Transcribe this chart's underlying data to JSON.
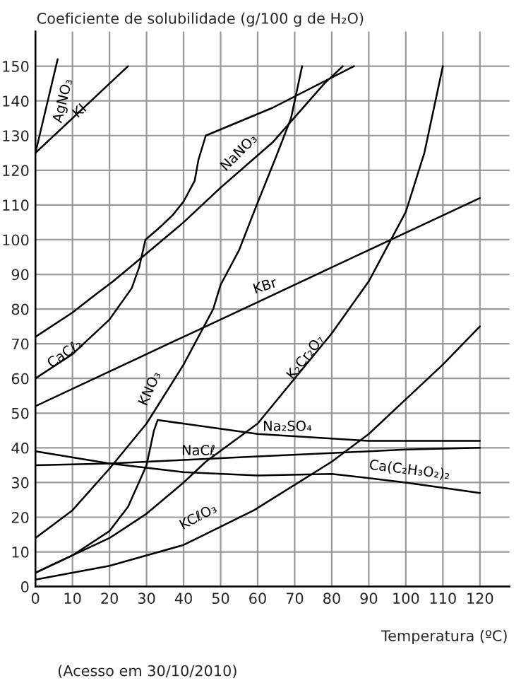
{
  "chart_data": {
    "type": "line",
    "ylabel": "Coeficiente de solubilidade (g/100 g de H₂O)",
    "xlabel": "Temperatura (ºC)",
    "annotations": [
      "(Acesso em 30/10/2010)"
    ],
    "xlim": [
      0,
      128
    ],
    "ylim": [
      0,
      160
    ],
    "xticks": [
      0,
      10,
      20,
      30,
      40,
      50,
      60,
      70,
      80,
      90,
      100,
      110,
      120
    ],
    "yticks": [
      0,
      10,
      20,
      30,
      40,
      50,
      60,
      70,
      80,
      90,
      100,
      110,
      120,
      130,
      140,
      150
    ],
    "grid": true,
    "legend": false,
    "marker": "none",
    "line_style": "solid",
    "series": [
      {
        "name": "AgNO₃",
        "color": "#000000",
        "x": [
          0,
          6
        ],
        "values": [
          125,
          152
        ]
      },
      {
        "name": "KI",
        "color": "#000000",
        "x": [
          0,
          25
        ],
        "values": [
          125,
          150
        ]
      },
      {
        "name": "NaNO₃",
        "color": "#000000",
        "x": [
          0,
          10,
          16,
          21,
          30,
          40,
          50,
          64,
          78,
          83
        ],
        "values": [
          72,
          79,
          84,
          88,
          96,
          105,
          115,
          128,
          145,
          150
        ]
      },
      {
        "name": "KBr",
        "color": "#000000",
        "x": [
          0,
          20,
          40,
          60,
          80,
          100,
          120
        ],
        "values": [
          52,
          62,
          72,
          82,
          92,
          102,
          112
        ]
      },
      {
        "name": "CaCℓ₂",
        "color": "#000000",
        "x": [
          0,
          10,
          20,
          26,
          28,
          29.7,
          33,
          37,
          40,
          43,
          44,
          46,
          64,
          86
        ],
        "values": [
          60,
          67,
          77,
          86,
          92,
          100,
          103,
          107,
          111,
          117,
          123,
          130,
          138,
          150
        ]
      },
      {
        "name": "KNO₃",
        "color": "#000000",
        "x": [
          0,
          10,
          20,
          30,
          40,
          48,
          50,
          55,
          59,
          65,
          69,
          72
        ],
        "values": [
          14,
          22,
          34,
          47,
          64,
          80,
          87,
          97,
          108,
          124,
          135,
          150
        ]
      },
      {
        "name": "K₂Cr₂O₇",
        "color": "#000000",
        "x": [
          0,
          10,
          20,
          30,
          40,
          46,
          60,
          70,
          80,
          90,
          100,
          105,
          110
        ],
        "values": [
          4,
          9,
          14,
          21,
          30,
          36,
          47,
          60,
          73,
          88,
          108,
          125,
          150
        ]
      },
      {
        "name": "Na₂SO₄",
        "color": "#000000",
        "x": [
          0,
          10,
          20,
          25,
          30,
          32,
          33,
          60,
          90,
          120
        ],
        "values": [
          4,
          9,
          16,
          23,
          35,
          45,
          48,
          44,
          42,
          42
        ]
      },
      {
        "name": "NaCℓ",
        "color": "#000000",
        "x": [
          0,
          20,
          40,
          60,
          80,
          100,
          120
        ],
        "values": [
          35,
          35.5,
          36.5,
          37.5,
          38.5,
          39.5,
          40
        ]
      },
      {
        "name": "Ca(C₂H₃O₂)₂",
        "color": "#000000",
        "x": [
          0,
          20,
          40,
          60,
          80,
          100,
          120
        ],
        "values": [
          39,
          35.5,
          33,
          32,
          32.5,
          30,
          27
        ]
      },
      {
        "name": "KCℓO₃",
        "color": "#000000",
        "x": [
          0,
          20,
          40,
          59,
          80,
          90,
          100,
          110,
          120
        ],
        "values": [
          2,
          6,
          12,
          22,
          36,
          44,
          54,
          64,
          75
        ]
      }
    ]
  }
}
